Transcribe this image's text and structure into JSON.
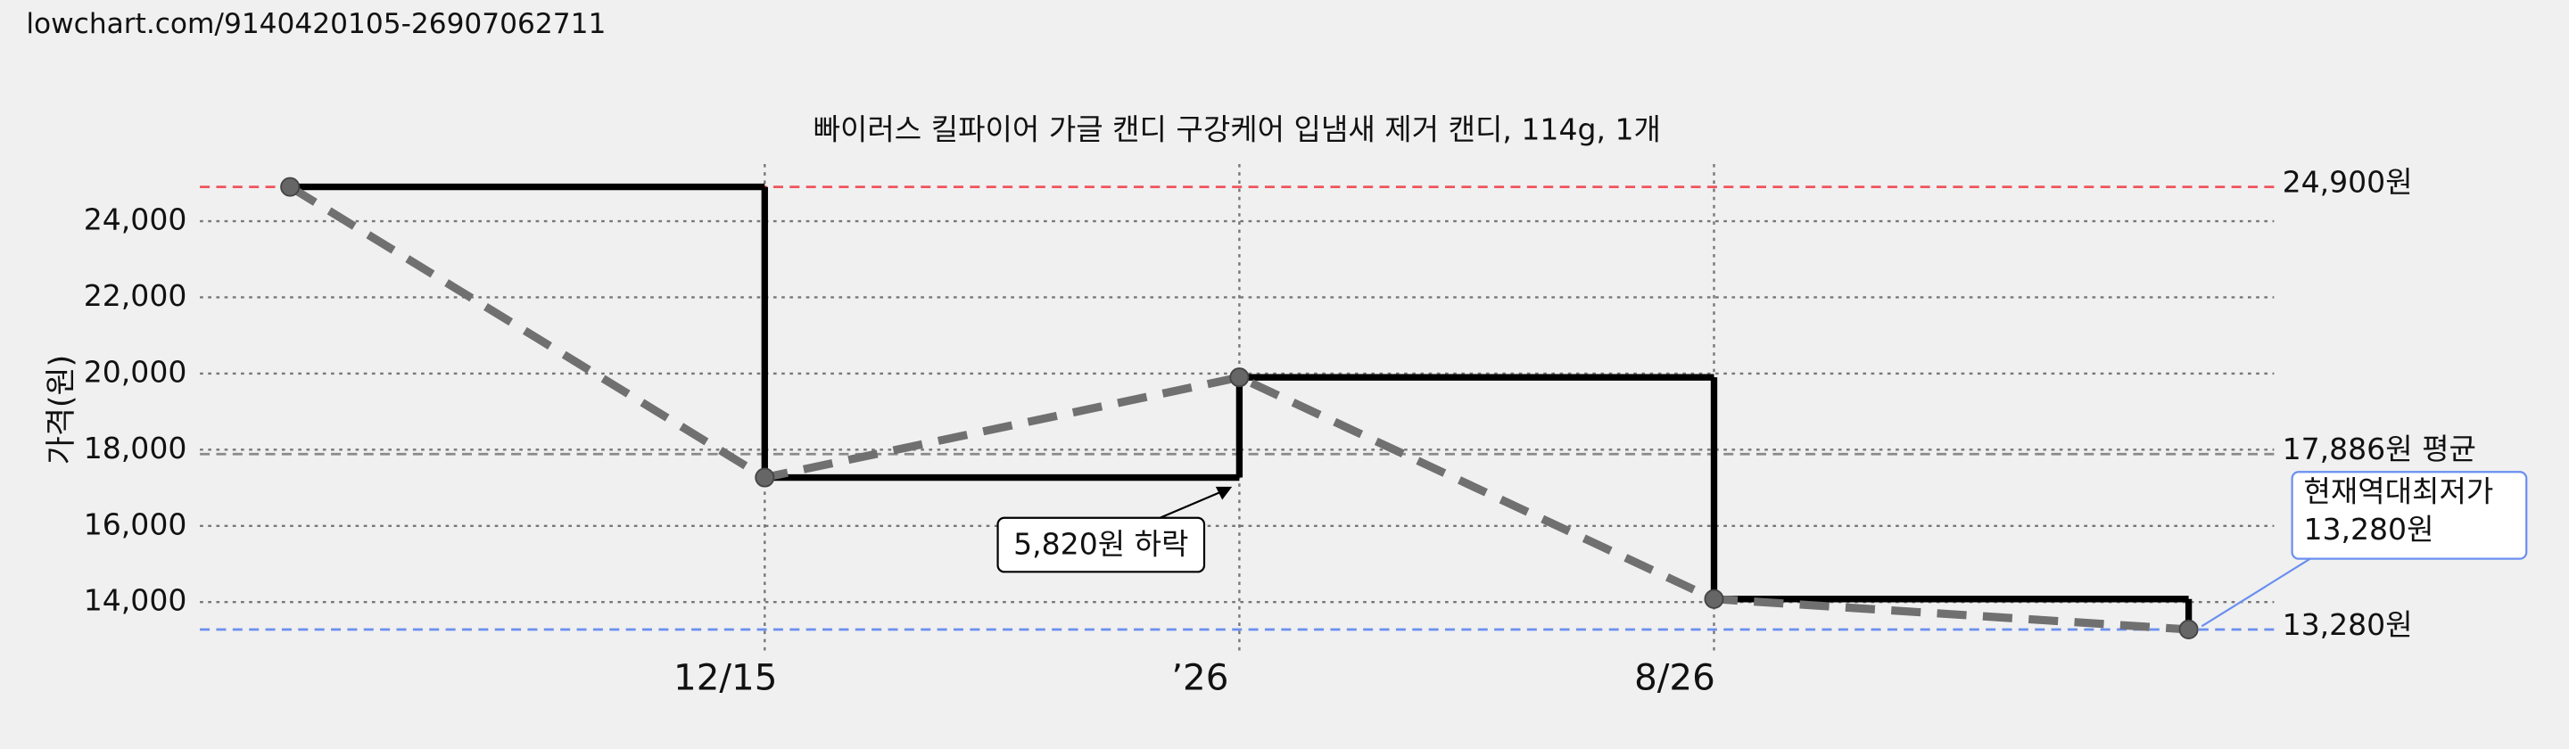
{
  "header": {
    "url": "lowchart.com/9140420105-26907062711"
  },
  "chart_data": {
    "type": "line",
    "title": "빠이러스 킬파이어 가글 캔디 구강케어 입냄새 제거 캔디, 114g, 1개",
    "y_label": "가격(원)",
    "x": [
      0,
      1,
      2,
      3,
      4
    ],
    "values": [
      24900,
      17270,
      19900,
      14080,
      13280
    ],
    "color": "#000000",
    "trend_color": "#707070",
    "step": true,
    "xlim": [
      -0.19,
      4.18
    ],
    "xticks": [
      {
        "value": 1,
        "label": "12/15"
      },
      {
        "value": 2,
        "label": "’26"
      },
      {
        "value": 3,
        "label": "8/26"
      }
    ],
    "ylim": [
      12600,
      25500
    ],
    "yticks": [
      {
        "value": 14000,
        "label": "14,000"
      },
      {
        "value": 16000,
        "label": "16,000"
      },
      {
        "value": 18000,
        "label": "18,000"
      },
      {
        "value": 20000,
        "label": "20,000"
      },
      {
        "value": 22000,
        "label": "22,000"
      },
      {
        "value": 24000,
        "label": "24,000"
      }
    ],
    "grid": true,
    "reference_lines": [
      {
        "value": 24900,
        "label": "24,900원",
        "color": "#f0545c"
      },
      {
        "value": 17886,
        "label": "17,886원 평균",
        "color": "#8a8a8a"
      },
      {
        "value": 13280,
        "label": "13,280원",
        "color": "#6a8ff0"
      }
    ],
    "annotation": {
      "text": "5,820원 하락"
    },
    "callout": {
      "lines": [
        "현재역대최저가",
        "13,280원"
      ],
      "color": "#6a8ff0"
    }
  }
}
